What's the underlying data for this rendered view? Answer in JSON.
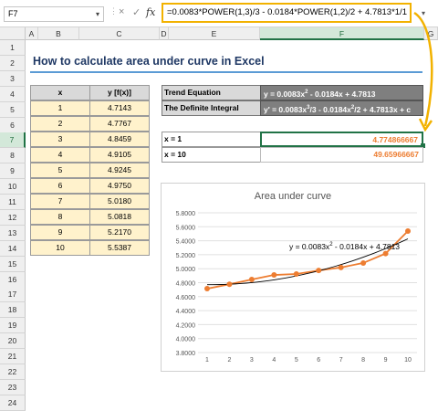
{
  "namebox": "F7",
  "formula": "=0.0083*POWER(1,3)/3 - 0.0184*POWER(1,2)/2 + 4.7813*1/1",
  "icons": {
    "cancel": "×",
    "enter": "✓",
    "fx": "fx"
  },
  "columns": [
    "A",
    "B",
    "C",
    "D",
    "E",
    "F",
    "G"
  ],
  "rows": [
    "1",
    "2",
    "3",
    "4",
    "5",
    "6",
    "7",
    "8",
    "9",
    "10",
    "11",
    "12",
    "13",
    "14",
    "15",
    "16",
    "17",
    "18",
    "19",
    "20",
    "21",
    "22",
    "23",
    "24"
  ],
  "title": "How to calculate area under curve in Excel",
  "table": {
    "headers": [
      "x",
      "y [f(x)]"
    ],
    "rows": [
      [
        "1",
        "4.7143"
      ],
      [
        "2",
        "4.7767"
      ],
      [
        "3",
        "4.8459"
      ],
      [
        "4",
        "4.9105"
      ],
      [
        "5",
        "4.9245"
      ],
      [
        "6",
        "4.9750"
      ],
      [
        "7",
        "5.0180"
      ],
      [
        "8",
        "5.0818"
      ],
      [
        "9",
        "5.2170"
      ],
      [
        "10",
        "5.5387"
      ]
    ]
  },
  "trend": {
    "label1": "Trend Equation",
    "eq1_a": "y = 0.0083x",
    "eq1_b": " - 0.0184x + 4.7813",
    "label2": "The Definite Integral",
    "eq2_a": "y' = 0.0083x",
    "eq2_b": "/3 - 0.0184x",
    "eq2_c": "/2 + 4.7813x + c",
    "sup2": "2",
    "sup3": "3"
  },
  "results": [
    {
      "label": "x = 1",
      "value": "4.774866667"
    },
    {
      "label": "x = 10",
      "value": "49.65966667"
    }
  ],
  "chart_data": {
    "type": "scatter",
    "title": "Area under curve",
    "x": [
      1,
      2,
      3,
      4,
      5,
      6,
      7,
      8,
      9,
      10
    ],
    "y": [
      4.7143,
      4.7767,
      4.8459,
      4.9105,
      4.9245,
      4.975,
      5.018,
      5.0818,
      5.217,
      5.5387
    ],
    "ylim": [
      3.8,
      5.8
    ],
    "yticks": [
      "5.8000",
      "5.6000",
      "5.4000",
      "5.2000",
      "5.0000",
      "4.8000",
      "4.6000",
      "4.4000",
      "4.2000",
      "4.0000",
      "3.8000"
    ],
    "xticks": [
      "1",
      "2",
      "3",
      "4",
      "5",
      "6",
      "7",
      "8",
      "9",
      "10"
    ],
    "trend_a": "y = 0.0083x",
    "trend_b": " - 0.0184x + 4.7813",
    "trend_sup": "2",
    "colors": {
      "series": "#ed7d31",
      "trend": "#000000"
    }
  }
}
